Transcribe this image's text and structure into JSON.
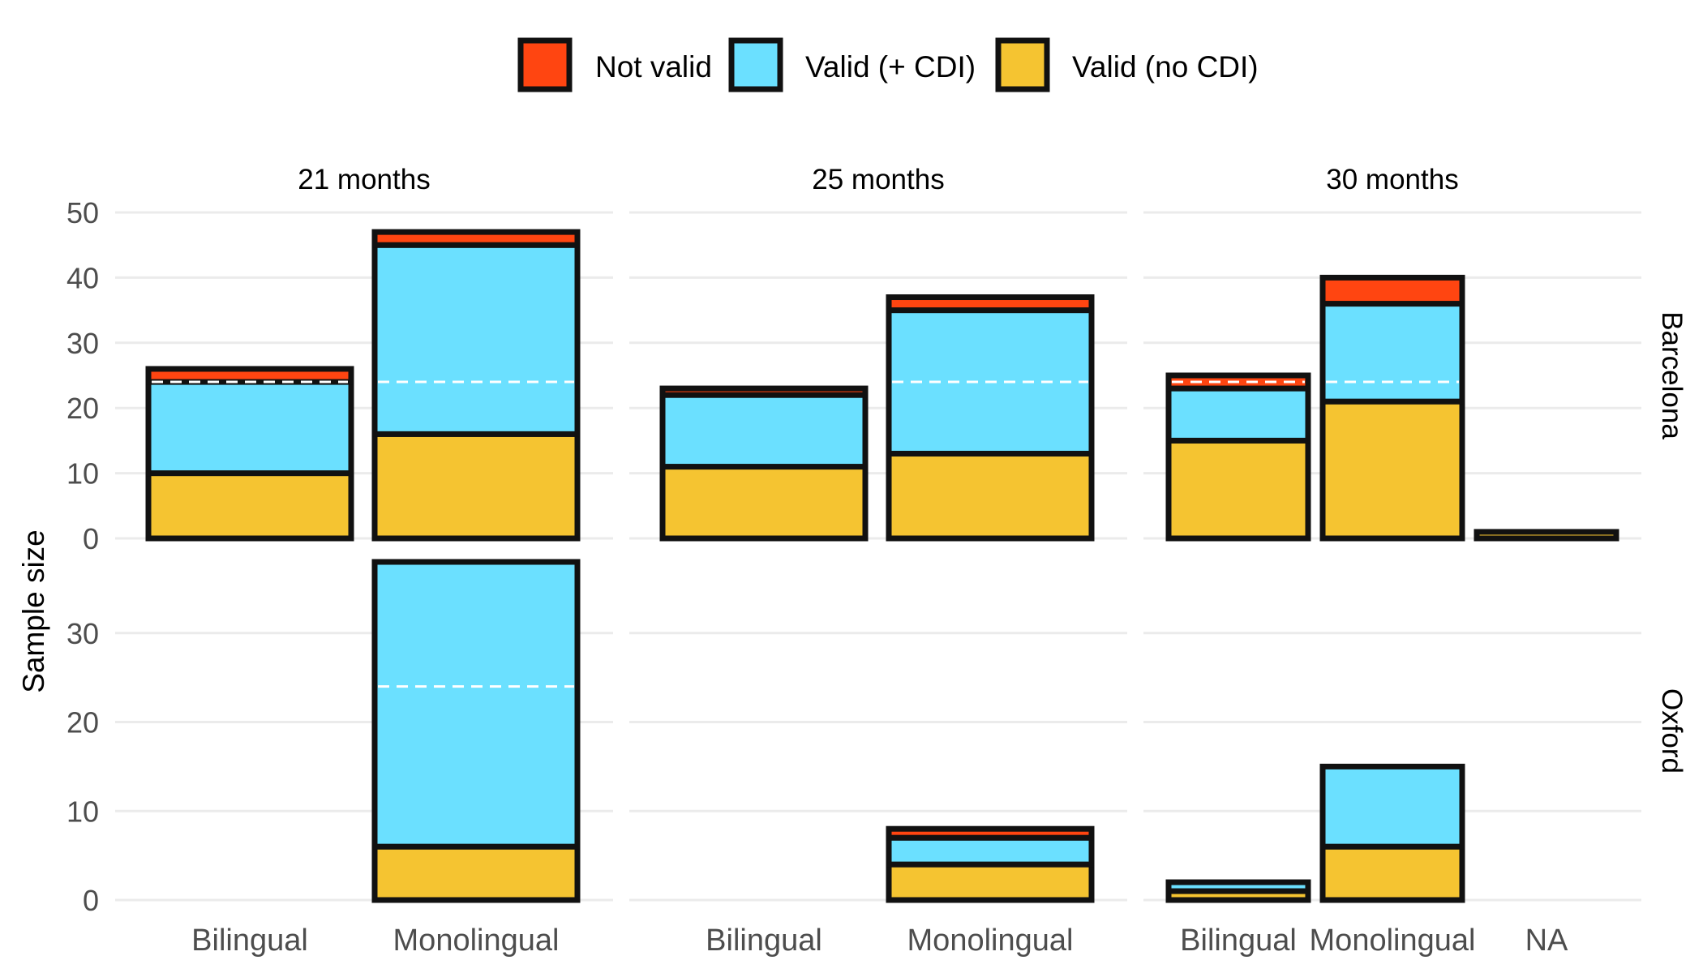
{
  "chart_data": {
    "type": "bar",
    "stacked": true,
    "facet_columns": [
      "21 months",
      "25 months",
      "30 months"
    ],
    "facet_rows": [
      "Barcelona",
      "Oxford"
    ],
    "categories": [
      "Bilingual",
      "Monolingual",
      "NA"
    ],
    "ylabel": "Sample size",
    "xlabel": "",
    "legend": {
      "position": "top",
      "items": [
        {
          "key": "not_valid",
          "label": "Not valid",
          "color": "#FF4511"
        },
        {
          "key": "valid_cdi",
          "label": "Valid (+ CDI)",
          "color": "#6BE0FF"
        },
        {
          "key": "valid_no_cdi",
          "label": "Valid (no CDI)",
          "color": "#F5C431"
        }
      ]
    },
    "stack_order": [
      "valid_no_cdi",
      "valid_cdi",
      "not_valid"
    ],
    "reference_line": {
      "y": 24,
      "style": "dashed",
      "color": "#ffffff"
    },
    "rows": [
      {
        "row": "Barcelona",
        "ylim": [
          0,
          50
        ],
        "yticks": [
          0,
          10,
          20,
          30,
          40,
          50
        ],
        "panels": [
          {
            "column": "21 months",
            "categories": [
              "Bilingual",
              "Monolingual"
            ],
            "bars": [
              {
                "category": "Bilingual",
                "valid_no_cdi": 10,
                "valid_cdi": 14,
                "not_valid": 2
              },
              {
                "category": "Monolingual",
                "valid_no_cdi": 16,
                "valid_cdi": 29,
                "not_valid": 2
              }
            ]
          },
          {
            "column": "25 months",
            "categories": [
              "Bilingual",
              "Monolingual"
            ],
            "bars": [
              {
                "category": "Bilingual",
                "valid_no_cdi": 11,
                "valid_cdi": 11,
                "not_valid": 1
              },
              {
                "category": "Monolingual",
                "valid_no_cdi": 13,
                "valid_cdi": 22,
                "not_valid": 2
              }
            ]
          },
          {
            "column": "30 months",
            "categories": [
              "Bilingual",
              "Monolingual",
              "NA"
            ],
            "bars": [
              {
                "category": "Bilingual",
                "valid_no_cdi": 15,
                "valid_cdi": 8,
                "not_valid": 2
              },
              {
                "category": "Monolingual",
                "valid_no_cdi": 21,
                "valid_cdi": 15,
                "not_valid": 4
              },
              {
                "category": "NA",
                "valid_no_cdi": 1,
                "valid_cdi": 0,
                "not_valid": 0
              }
            ]
          }
        ]
      },
      {
        "row": "Oxford",
        "ylim": [
          0,
          38
        ],
        "yticks": [
          0,
          10,
          20,
          30
        ],
        "panels": [
          {
            "column": "21 months",
            "categories": [
              "Bilingual",
              "Monolingual"
            ],
            "bars": [
              {
                "category": "Monolingual",
                "valid_no_cdi": 6,
                "valid_cdi": 32,
                "not_valid": 0
              }
            ]
          },
          {
            "column": "25 months",
            "categories": [
              "Bilingual",
              "Monolingual"
            ],
            "bars": [
              {
                "category": "Monolingual",
                "valid_no_cdi": 4,
                "valid_cdi": 3,
                "not_valid": 1
              }
            ]
          },
          {
            "column": "30 months",
            "categories": [
              "Bilingual",
              "Monolingual",
              "NA"
            ],
            "bars": [
              {
                "category": "Bilingual",
                "valid_no_cdi": 1,
                "valid_cdi": 1,
                "not_valid": 0
              },
              {
                "category": "Monolingual",
                "valid_no_cdi": 6,
                "valid_cdi": 9,
                "not_valid": 0
              }
            ]
          }
        ]
      }
    ]
  }
}
